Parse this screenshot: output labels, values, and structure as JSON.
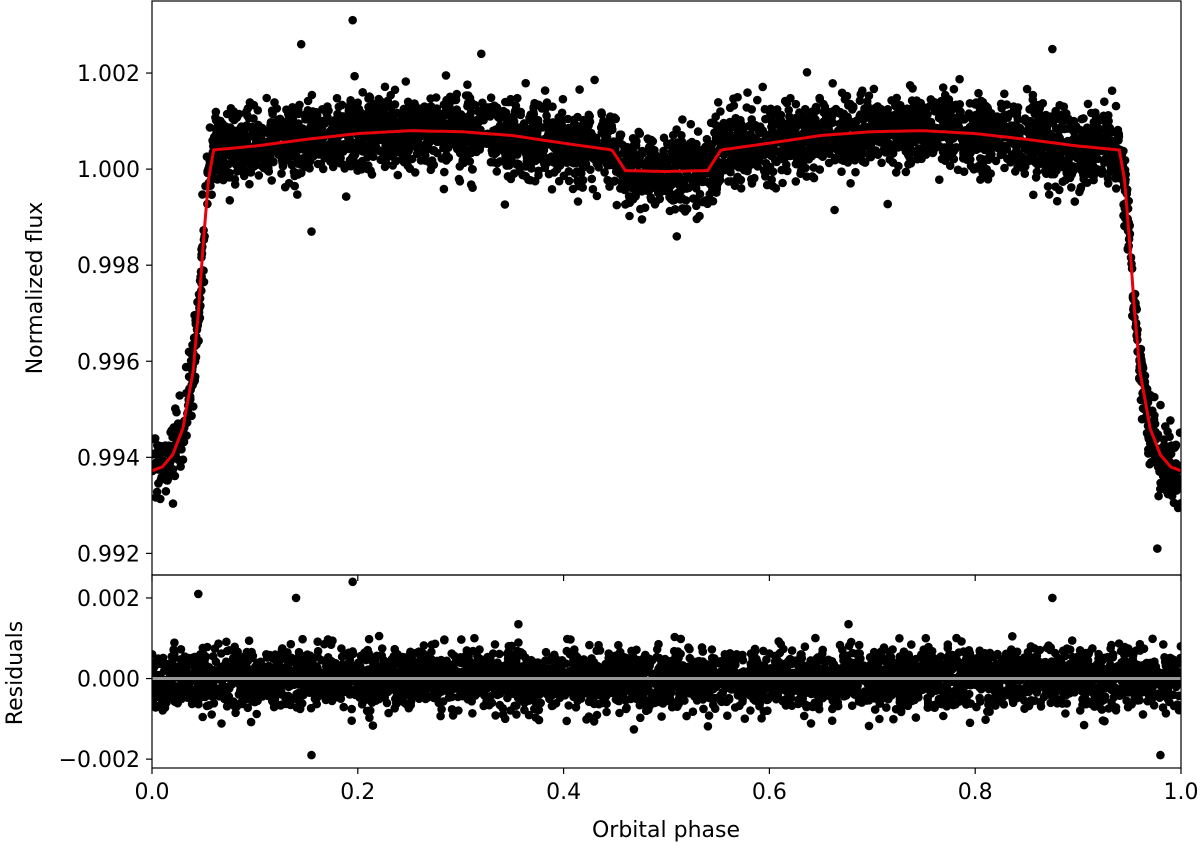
{
  "chart_data": [
    {
      "panel": "top",
      "type": "scatter",
      "xlabel": "",
      "ylabel": "Normalized flux",
      "xlim": [
        0.0,
        1.0
      ],
      "ylim": [
        0.99155,
        1.0035
      ],
      "xticks": [
        0.0,
        0.2,
        0.4,
        0.6,
        0.8,
        1.0
      ],
      "yticks": [
        0.992,
        0.994,
        0.996,
        0.998,
        1.0,
        1.002
      ],
      "ytick_labels": [
        "0.992",
        "0.994",
        "0.996",
        "0.998",
        "1.000",
        "1.002"
      ],
      "series": [
        {
          "kind": "data",
          "color": "#000000",
          "scatter_sigma": 0.0005,
          "outliers": [
            [
              0.195,
              1.0031
            ],
            [
              0.145,
              1.0026
            ],
            [
              0.51,
              0.9986
            ],
            [
              0.155,
              0.9987
            ],
            [
              0.977,
              0.9921
            ],
            [
              0.875,
              1.0025
            ],
            [
              0.32,
              1.0024
            ]
          ]
        },
        {
          "kind": "model",
          "color": "#e8000b",
          "x": [
            0.0,
            0.01,
            0.02,
            0.03,
            0.04,
            0.045,
            0.05,
            0.055,
            0.06,
            0.1,
            0.15,
            0.2,
            0.25,
            0.3,
            0.35,
            0.4,
            0.44,
            0.447,
            0.46,
            0.5,
            0.54,
            0.553,
            0.56,
            0.6,
            0.65,
            0.7,
            0.75,
            0.8,
            0.85,
            0.9,
            0.94,
            0.945,
            0.95,
            0.955,
            0.96,
            0.97,
            0.98,
            0.99,
            1.0
          ],
          "y": [
            0.99372,
            0.9938,
            0.99405,
            0.9946,
            0.9958,
            0.997,
            0.9985,
            0.9998,
            1.0004,
            1.00048,
            1.00062,
            1.00074,
            1.0008,
            1.00078,
            1.0007,
            1.00054,
            1.00042,
            1.0004,
            0.99997,
            0.99995,
            0.99997,
            1.0004,
            1.00042,
            1.00054,
            1.0007,
            1.00078,
            1.0008,
            1.00074,
            1.00062,
            1.00048,
            1.0004,
            0.9998,
            0.9985,
            0.997,
            0.9958,
            0.9946,
            0.99405,
            0.9938,
            0.99372
          ]
        }
      ]
    },
    {
      "panel": "bottom",
      "type": "scatter",
      "xlabel": "Orbital phase",
      "ylabel": "Residuals",
      "xlim": [
        0.0,
        1.0
      ],
      "ylim": [
        -0.00222,
        0.00257
      ],
      "xticks": [
        0.0,
        0.2,
        0.4,
        0.6,
        0.8,
        1.0
      ],
      "xtick_labels": [
        "0.0",
        "0.2",
        "0.4",
        "0.6",
        "0.8",
        "1.0"
      ],
      "yticks": [
        -0.002,
        0.0,
        0.002
      ],
      "ytick_labels": [
        "−0.002",
        "0.000",
        "0.002"
      ],
      "series": [
        {
          "kind": "residuals",
          "color": "#000000",
          "scatter_sigma": 0.00042,
          "outliers": [
            [
              0.195,
              0.0024
            ],
            [
              0.155,
              -0.0019
            ],
            [
              0.98,
              -0.0019
            ],
            [
              0.875,
              0.002
            ],
            [
              0.14,
              0.002
            ],
            [
              0.045,
              0.0021
            ]
          ]
        },
        {
          "kind": "zero-line",
          "color": "#999999",
          "y": 0.0
        }
      ]
    }
  ]
}
